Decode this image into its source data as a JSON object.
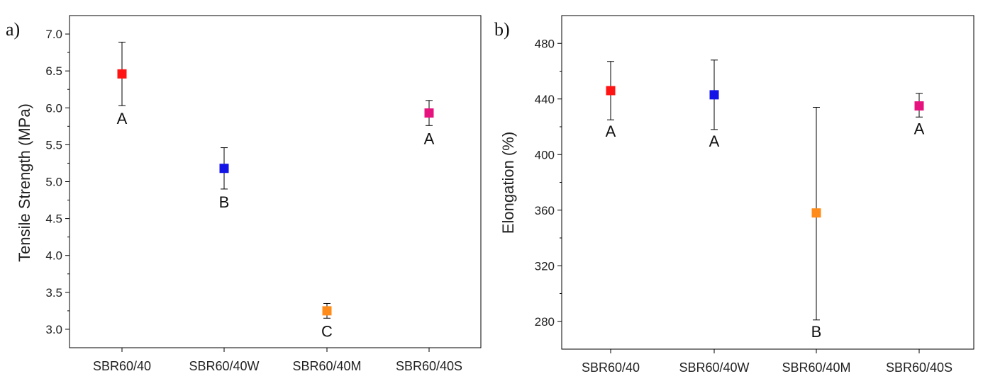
{
  "chart_data": [
    {
      "type": "scatter",
      "panel_label": "a)",
      "ylabel": "Tensile Strength (MPa)",
      "xlabel": "",
      "categories": [
        "SBR60/40",
        "SBR60/40W",
        "SBR60/40M",
        "SBR60/40S"
      ],
      "values": [
        6.46,
        5.18,
        3.25,
        5.93
      ],
      "errors_upper": [
        6.89,
        5.46,
        3.35,
        6.1
      ],
      "errors_lower": [
        6.03,
        4.9,
        3.15,
        5.76
      ],
      "significance_labels": [
        "A",
        "B",
        "C",
        "A"
      ],
      "colors": [
        "#ff1414",
        "#1414e6",
        "#ff8c1a",
        "#e6137e"
      ],
      "ylim": [
        2.75,
        7.25
      ],
      "yticks": [
        "3.0",
        "3.5",
        "4.0",
        "4.5",
        "5.0",
        "5.5",
        "6.0",
        "6.5",
        "7.0"
      ],
      "ytick_values": [
        3.0,
        3.5,
        4.0,
        4.5,
        5.0,
        5.5,
        6.0,
        6.5,
        7.0
      ],
      "grid": false
    },
    {
      "type": "scatter",
      "panel_label": "b)",
      "ylabel": "Elongation (%)",
      "xlabel": "",
      "categories": [
        "SBR60/40",
        "SBR60/40W",
        "SBR60/40M",
        "SBR60/40S"
      ],
      "values": [
        446,
        443,
        358,
        435
      ],
      "errors_upper": [
        467,
        468,
        434,
        444
      ],
      "errors_lower": [
        425,
        418,
        281,
        427
      ],
      "significance_labels": [
        "A",
        "A",
        "B",
        "A"
      ],
      "colors": [
        "#ff1414",
        "#1414e6",
        "#ff8c1a",
        "#e6137e"
      ],
      "ylim": [
        260,
        500
      ],
      "yticks": [
        "280",
        "320",
        "360",
        "400",
        "440",
        "480"
      ],
      "ytick_values": [
        280,
        320,
        360,
        400,
        440,
        480
      ],
      "grid": false
    }
  ]
}
